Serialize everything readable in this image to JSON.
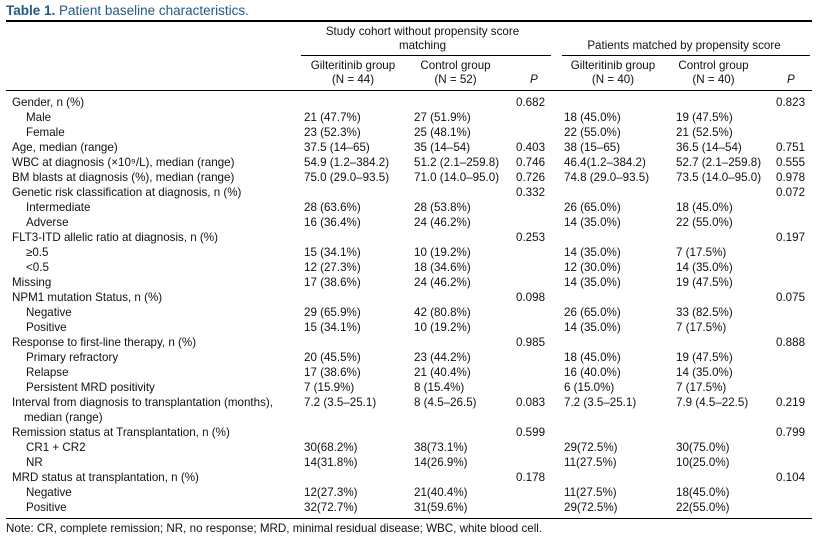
{
  "title": {
    "label": "Table 1.",
    "text": "Patient baseline characteristics."
  },
  "groups": {
    "unmatched": "Study cohort without propensity score matching",
    "unmatched_l1": "Study cohort without propensity score",
    "unmatched_l2": "matching",
    "matched": "Patients matched by propensity score"
  },
  "columns": {
    "gil_unmatched": {
      "name": "Gilteritinib group",
      "n": "(N = 44)"
    },
    "ctl_unmatched": {
      "name": "Control group",
      "n": "(N = 52)"
    },
    "p": "P",
    "gil_matched": {
      "name": "Gilteritinib group",
      "n": "(N = 40)"
    },
    "ctl_matched": {
      "name": "Control group",
      "n": "(N = 40)"
    }
  },
  "rows": [
    {
      "label": "Gender, n (%)",
      "indent": false,
      "a": "",
      "b": "",
      "p1": "0.682",
      "c": "",
      "d": "",
      "p2": "0.823"
    },
    {
      "label": "Male",
      "indent": true,
      "a": "21 (47.7%)",
      "b": "27 (51.9%)",
      "p1": "",
      "c": "18 (45.0%)",
      "d": "19 (47.5%)",
      "p2": ""
    },
    {
      "label": "Female",
      "indent": true,
      "a": "23 (52.3%)",
      "b": "25 (48.1%)",
      "p1": "",
      "c": "22 (55.0%)",
      "d": "21 (52.5%)",
      "p2": ""
    },
    {
      "label": "Age, median (range)",
      "indent": false,
      "a": "37.5 (14–65)",
      "b": "35 (14–54)",
      "p1": "0.403",
      "c": "38 (15–65)",
      "d": "36.5 (14–54)",
      "p2": "0.751"
    },
    {
      "label": "WBC at diagnosis (×10⁹/L), median (range)",
      "indent": false,
      "a": "54.9 (1.2–384.2)",
      "b": "51.2 (2.1–259.8)",
      "p1": "0.746",
      "c": "46.4(1.2–384.2)",
      "d": "52.7 (2.1–259.8)",
      "p2": "0.555"
    },
    {
      "label": "BM blasts at diagnosis (%), median (range)",
      "indent": false,
      "a": "75.0 (29.0–93.5)",
      "b": "71.0 (14.0–95.0)",
      "p1": "0.726",
      "c": "74.8 (29.0–93.5)",
      "d": "73.5 (14.0–95.0)",
      "p2": "0.978"
    },
    {
      "label": "Genetic risk classification at diagnosis, n (%)",
      "indent": false,
      "a": "",
      "b": "",
      "p1": "0.332",
      "c": "",
      "d": "",
      "p2": "0.072"
    },
    {
      "label": "Intermediate",
      "indent": true,
      "a": "28 (63.6%)",
      "b": "28 (53.8%)",
      "p1": "",
      "c": "26 (65.0%)",
      "d": "18 (45.0%)",
      "p2": ""
    },
    {
      "label": "Adverse",
      "indent": true,
      "a": "16 (36.4%)",
      "b": "24 (46.2%)",
      "p1": "",
      "c": "14 (35.0%)",
      "d": "22 (55.0%)",
      "p2": ""
    },
    {
      "label": "FLT3-ITD allelic ratio at diagnosis, n (%)",
      "indent": false,
      "a": "",
      "b": "",
      "p1": "0.253",
      "c": "",
      "d": "",
      "p2": "0.197"
    },
    {
      "label": "≥0.5",
      "indent": true,
      "a": "15 (34.1%)",
      "b": "10 (19.2%)",
      "p1": "",
      "c": "14 (35.0%)",
      "d": "7 (17.5%)",
      "p2": ""
    },
    {
      "label": "<0.5",
      "indent": true,
      "a": "12 (27.3%)",
      "b": "18 (34.6%)",
      "p1": "",
      "c": "12 (30.0%)",
      "d": "14 (35.0%)",
      "p2": ""
    },
    {
      "label": "Missing",
      "indent": false,
      "a": "17 (38.6%)",
      "b": "24 (46.2%)",
      "p1": "",
      "c": "14 (35.0%)",
      "d": "19 (47.5%)",
      "p2": ""
    },
    {
      "label": "NPM1 mutation Status, n (%)",
      "indent": false,
      "a": "",
      "b": "",
      "p1": "0.098",
      "c": "",
      "d": "",
      "p2": "0.075"
    },
    {
      "label": "Negative",
      "indent": true,
      "a": "29 (65.9%)",
      "b": "42 (80.8%)",
      "p1": "",
      "c": "26 (65.0%)",
      "d": "33 (82.5%)",
      "p2": ""
    },
    {
      "label": "Positive",
      "indent": true,
      "a": "15 (34.1%)",
      "b": "10 (19.2%)",
      "p1": "",
      "c": "14 (35.0%)",
      "d": "7 (17.5%)",
      "p2": ""
    },
    {
      "label": "Response to first-line therapy, n (%)",
      "indent": false,
      "a": "",
      "b": "",
      "p1": "0.985",
      "c": "",
      "d": "",
      "p2": "0.888"
    },
    {
      "label": "Primary refractory",
      "indent": true,
      "a": "20 (45.5%)",
      "b": "23 (44.2%)",
      "p1": "",
      "c": "18 (45.0%)",
      "d": "19 (47.5%)",
      "p2": ""
    },
    {
      "label": "Relapse",
      "indent": true,
      "a": "17 (38.6%)",
      "b": "21 (40.4%)",
      "p1": "",
      "c": "16 (40.0%)",
      "d": "14 (35.0%)",
      "p2": ""
    },
    {
      "label": "Persistent MRD positivity",
      "indent": true,
      "a": "7 (15.9%)",
      "b": "8 (15.4%)",
      "p1": "",
      "c": "6 (15.0%)",
      "d": "7 (17.5%)",
      "p2": ""
    },
    {
      "label": "Interval from diagnosis to transplantation (months),",
      "label2": "median (range)",
      "indent": false,
      "a": "7.2 (3.5–25.1)",
      "b": "8 (4.5–26.5)",
      "p1": "0.083",
      "c": "7.2 (3.5–25.1)",
      "d": "7.9 (4.5–22.5)",
      "p2": "0.219"
    },
    {
      "label": "Remission status at Transplantation, n (%)",
      "indent": false,
      "a": "",
      "b": "",
      "p1": "0.599",
      "c": "",
      "d": "",
      "p2": "0.799"
    },
    {
      "label": "CR1 + CR2",
      "indent": true,
      "a": "30(68.2%)",
      "b": "38(73.1%)",
      "p1": "",
      "c": "29(72.5%)",
      "d": "30(75.0%)",
      "p2": ""
    },
    {
      "label": "NR",
      "indent": true,
      "a": "14(31.8%)",
      "b": "14(26.9%)",
      "p1": "",
      "c": "11(27.5%)",
      "d": "10(25.0%)",
      "p2": ""
    },
    {
      "label": "MRD status at transplantation, n (%)",
      "indent": false,
      "a": "",
      "b": "",
      "p1": "0.178",
      "c": "",
      "d": "",
      "p2": "0.104"
    },
    {
      "label": "Negative",
      "indent": true,
      "a": "12(27.3%)",
      "b": "21(40.4%)",
      "p1": "",
      "c": "11(27.5%)",
      "d": "18(45.0%)",
      "p2": ""
    },
    {
      "label": "Positive",
      "indent": true,
      "a": "32(72.7%)",
      "b": "31(59.6%)",
      "p1": "",
      "c": "29(72.5%)",
      "d": "22(55.0%)",
      "p2": ""
    }
  ],
  "note": "Note: CR, complete remission; NR, no response; MRD, minimal residual disease; WBC, white blood cell."
}
